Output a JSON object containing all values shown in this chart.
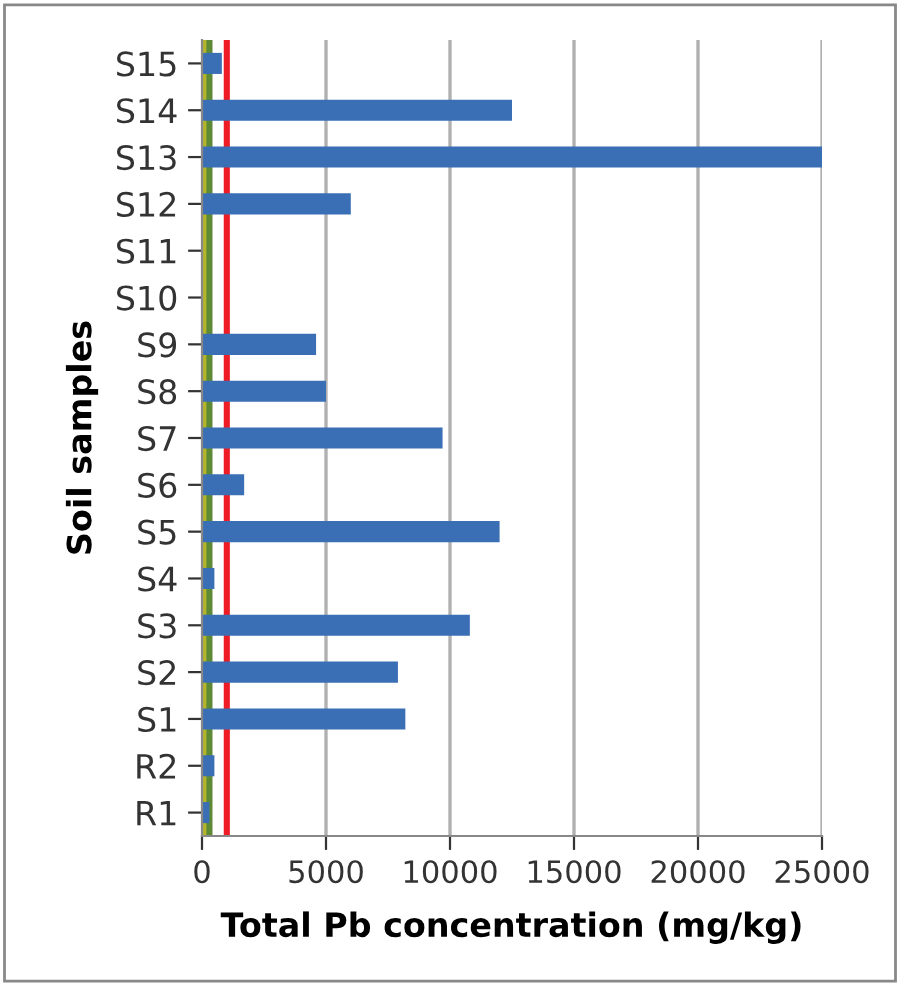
{
  "chart_data": {
    "type": "bar",
    "orientation": "horizontal",
    "xlabel": "Total Pb concentration (mg/kg)",
    "ylabel": "Soil samples",
    "categories": [
      "S15",
      "S14",
      "S13",
      "S12",
      "S11",
      "S10",
      "S9",
      "S8",
      "S7",
      "S6",
      "S5",
      "S4",
      "S3",
      "S2",
      "S1",
      "R2",
      "R1"
    ],
    "values": [
      800,
      12500,
      25000,
      6000,
      null,
      null,
      4600,
      5000,
      9700,
      1700,
      12000,
      500,
      10800,
      7900,
      8200,
      500,
      300
    ],
    "color": "#3a6fb5",
    "xlim": [
      0,
      25000
    ],
    "xticks": [
      0,
      5000,
      10000,
      15000,
      20000,
      25000
    ],
    "grid": "x",
    "ref_lines": [
      {
        "axis": "x",
        "value": 150,
        "color": "#b5b52a"
      },
      {
        "axis": "x",
        "value": 300,
        "color": "#5f8a35"
      },
      {
        "axis": "x",
        "value": 1000,
        "color": "#ee1c24"
      }
    ]
  }
}
